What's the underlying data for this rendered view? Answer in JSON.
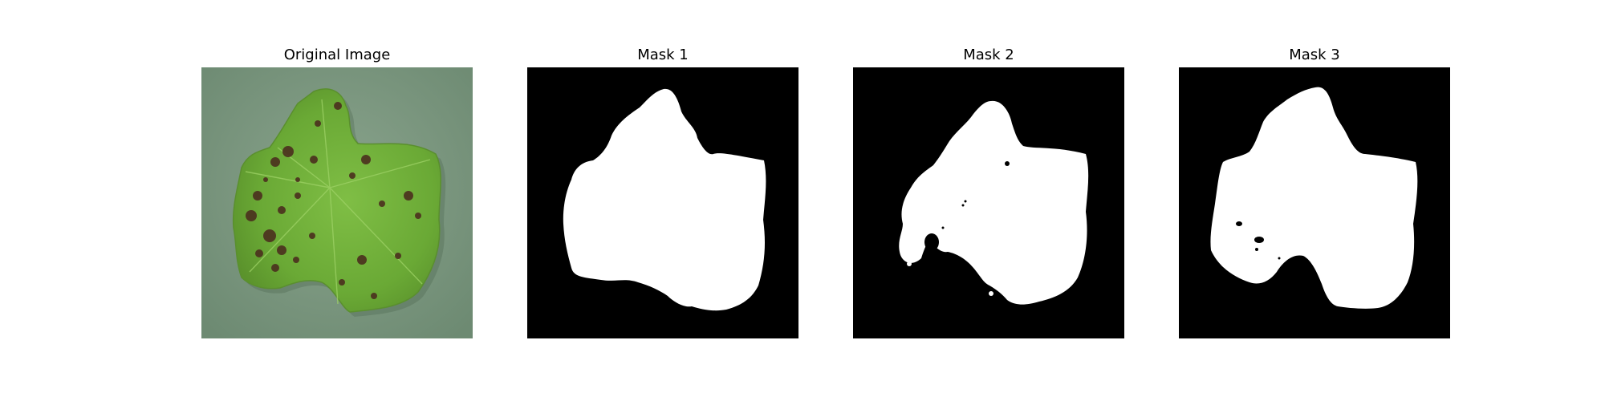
{
  "figure": {
    "panels": [
      {
        "title": "Original Image",
        "kind": "photo",
        "subject": "leaf"
      },
      {
        "title": "Mask 1",
        "kind": "mask"
      },
      {
        "title": "Mask 2",
        "kind": "mask"
      },
      {
        "title": "Mask 3",
        "kind": "mask"
      }
    ]
  },
  "colors": {
    "background": "#ffffff",
    "mask_foreground": "#ffffff",
    "mask_background": "#000000",
    "photo_background": "#7f9a83",
    "leaf_green": "#6fae3a",
    "leaf_spot": "#4b2f1e"
  }
}
